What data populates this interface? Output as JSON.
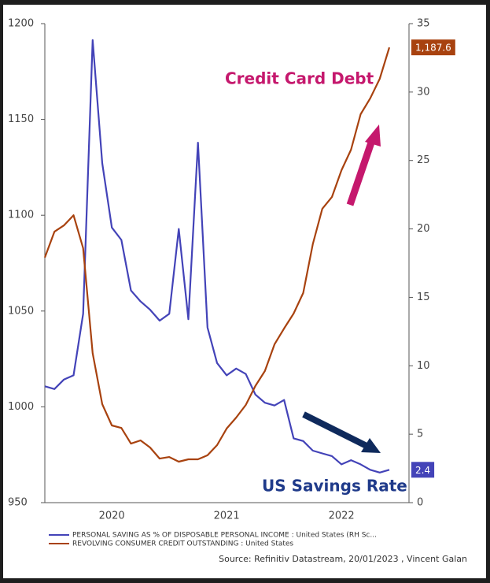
{
  "chart_data": {
    "type": "line",
    "categories": [
      null,
      null,
      null,
      null,
      null,
      null,
      null,
      "2020",
      null,
      null,
      null,
      null,
      null,
      null,
      null,
      null,
      null,
      null,
      null,
      "2021",
      null,
      null,
      null,
      null,
      null,
      null,
      null,
      null,
      null,
      null,
      null,
      "2022",
      null,
      null,
      null,
      null,
      null
    ],
    "series": [
      {
        "name": "PERSONAL SAVING AS % OF DISPOSABLE PERSONAL INCOME : United States (RH Sc...",
        "color": "#4343b8",
        "axis": "y2",
        "values": [
          8.5,
          8.3,
          9.0,
          9.3,
          13.8,
          33.8,
          24.8,
          20.1,
          19.2,
          15.5,
          14.7,
          14.1,
          13.3,
          13.8,
          20.0,
          13.4,
          26.3,
          12.8,
          10.2,
          9.3,
          9.8,
          9.4,
          7.9,
          7.3,
          7.1,
          7.5,
          4.7,
          4.5,
          3.8,
          3.6,
          3.4,
          2.8,
          3.1,
          2.8,
          2.4,
          2.2,
          2.4
        ]
      },
      {
        "name": "REVOLVING CONSUMER CREDIT OUTSTANDING : United States",
        "color": "#a8420f",
        "values": [
          1077.9,
          1091.4,
          1094.7,
          1100,
          1082.8,
          1028,
          1001.4,
          990.3,
          989,
          980.8,
          982.5,
          978.8,
          973,
          973.8,
          971.4,
          972.6,
          972.6,
          974.7,
          980,
          988.7,
          994.4,
          1001,
          1010.9,
          1018.7,
          1032.6,
          1040.9,
          1048.7,
          1059.4,
          1084.9,
          1103.4,
          1109.5,
          1123.5,
          1134.2,
          1152.7,
          1161,
          1171.2,
          1187.6
        ],
        "value_labels": {
          "36": "1,187.6"
        }
      }
    ],
    "ylim": [
      950,
      1200
    ],
    "yticks": [
      950,
      1000,
      1050,
      1100,
      1150,
      1200
    ],
    "y2lim": [
      0,
      35
    ],
    "y2ticks": [
      0,
      5,
      10,
      15,
      20,
      25,
      30,
      35
    ],
    "annotations": [
      "Credit Card Debt",
      "US Savings Rate"
    ],
    "source": "Source: Refinitiv Datastream, 20/01/2023 , Vincent Galan"
  }
}
